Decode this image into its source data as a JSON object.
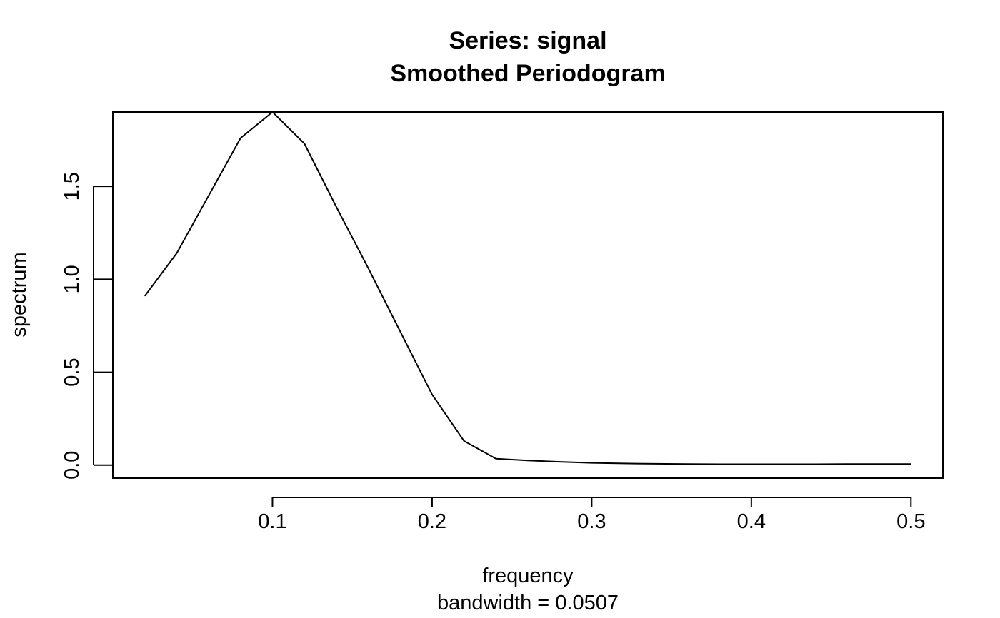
{
  "chart_data": {
    "type": "line",
    "title": "Series: signal",
    "subtitle": "Smoothed Periodogram",
    "xlabel": "frequency",
    "xlabel_sub": "bandwidth = 0.0507",
    "ylabel": "spectrum",
    "xlim": [
      0.0,
      0.52
    ],
    "ylim": [
      -0.07,
      1.9
    ],
    "x_ticks": [
      0.1,
      0.2,
      0.3,
      0.4,
      0.5
    ],
    "x_tick_labels": [
      "0.1",
      "0.2",
      "0.3",
      "0.4",
      "0.5"
    ],
    "y_ticks": [
      0.0,
      0.5,
      1.0,
      1.5
    ],
    "y_tick_labels": [
      "0.0",
      "0.5",
      "1.0",
      "1.5"
    ],
    "grid": false,
    "line_color": "#000000",
    "series": [
      {
        "x": [
          0.02,
          0.04,
          0.06,
          0.08,
          0.1,
          0.12,
          0.14,
          0.16,
          0.18,
          0.2,
          0.22,
          0.24,
          0.26,
          0.28,
          0.3,
          0.32,
          0.34,
          0.36,
          0.38,
          0.4,
          0.42,
          0.44,
          0.46,
          0.48,
          0.5
        ],
        "values": [
          0.91,
          1.14,
          1.45,
          1.76,
          1.9,
          1.73,
          1.39,
          1.06,
          0.72,
          0.38,
          0.13,
          0.035,
          0.025,
          0.018,
          0.012,
          0.009,
          0.007,
          0.006,
          0.005,
          0.005,
          0.005,
          0.005,
          0.006,
          0.006,
          0.006
        ]
      }
    ]
  }
}
